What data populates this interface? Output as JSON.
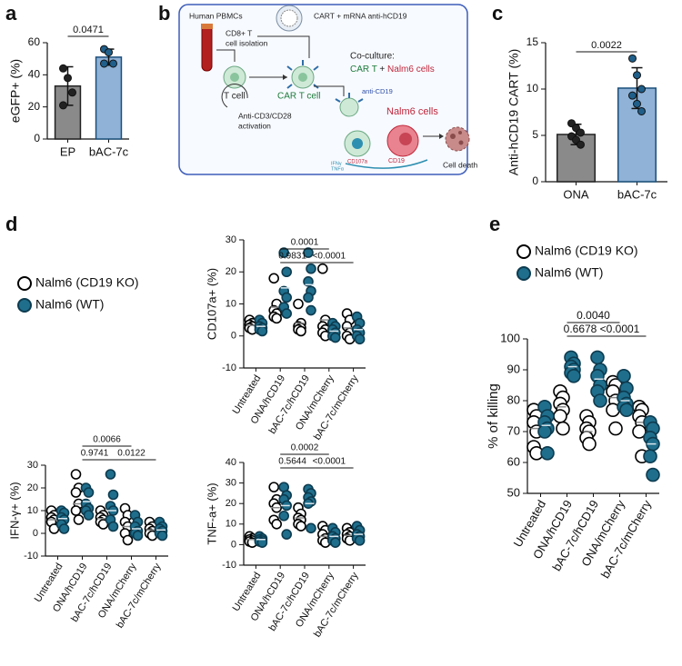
{
  "panel_labels": [
    "a",
    "b",
    "c",
    "d",
    "e"
  ],
  "diagram": {
    "pbmc": "Human PBMCs",
    "cart_mrna": "CART + mRNA anti-hCD19",
    "isolation": [
      "CD8+ T",
      "cell isolation"
    ],
    "t_cell": "T cell",
    "car_t_cell": "CAR T cell",
    "coculture": "Co-culture:",
    "coculture_cart": "CAR T",
    "coculture_plus": " + ",
    "coculture_nalm6": "Nalm6 cells",
    "anti_cd19": "anti-CD19",
    "nalm6": "Nalm6 cells",
    "activation": [
      "Anti-CD3/CD28",
      "activation"
    ],
    "cd107a": "CD107a",
    "cd19": "CD19",
    "cytokines": [
      "IFNγ",
      "TNFα"
    ],
    "cell_death": "Cell death"
  },
  "chart_data": [
    {
      "type": "bar",
      "ylabel": "eGFP+ (%)",
      "categories": [
        "EP",
        "bAC-7c"
      ],
      "values": [
        33,
        51
      ],
      "errors": [
        12,
        5
      ],
      "points": [
        [
          44,
          38,
          29,
          21
        ],
        [
          56,
          54,
          47,
          47
        ]
      ],
      "colors": [
        "#8a8a8a",
        "#8fb2d6"
      ],
      "edgecolors": [
        "#222222",
        "#1b4f7a"
      ],
      "ylim": [
        0,
        60
      ],
      "yticks": [
        0,
        20,
        40,
        60
      ],
      "comparisons": [
        {
          "groups": [
            0,
            1
          ],
          "label": "0.0471"
        }
      ]
    },
    {
      "type": "bar",
      "ylabel": "Anti-hCD19 CART (%)",
      "categories": [
        "ONA",
        "bAC-7c"
      ],
      "values": [
        5.1,
        10.1
      ],
      "errors": [
        1.1,
        2.2
      ],
      "points": [
        [
          6.3,
          5.8,
          5.3,
          4.9,
          4.5,
          4.0
        ],
        [
          13.3,
          11.5,
          10.0,
          9.3,
          8.4,
          7.6
        ]
      ],
      "colors": [
        "#8a8a8a",
        "#8fb2d6"
      ],
      "edgecolors": [
        "#222222",
        "#1b4f7a"
      ],
      "ylim": [
        0,
        15
      ],
      "yticks": [
        0,
        5,
        10,
        15
      ],
      "comparisons": [
        {
          "groups": [
            0,
            1
          ],
          "label": "0.0022"
        }
      ]
    },
    {
      "type": "dot",
      "ylabel": "CD107a+ (%)",
      "legend": true,
      "categories": [
        "Untreated",
        "ONA/hCD19",
        "bAC-7c/hCD19",
        "ONA/mCherry",
        "bAC-7c/mCherry"
      ],
      "series": [
        {
          "name": "Nalm6 (CD19 KO)",
          "color": "#ffffff",
          "edgecolor": "#000000",
          "values": [
            [
              5,
              4,
              3.5,
              3,
              2.5,
              2
            ],
            [
              18,
              10,
              8,
              7,
              6,
              5.5
            ],
            [
              10,
              4,
              3,
              2.5,
              2,
              1.5
            ],
            [
              21,
              5,
              3,
              2,
              1,
              0
            ],
            [
              7,
              5,
              3,
              1,
              0,
              -1
            ]
          ],
          "means": [
            3.3,
            9,
            4,
            5,
            2.5
          ]
        },
        {
          "name": "Nalm6 (WT)",
          "color": "#1f6e8c",
          "edgecolor": "#0d3b4f",
          "values": [
            [
              5,
              4,
              3,
              2.5,
              2,
              1.5
            ],
            [
              26,
              20,
              14,
              12,
              9,
              7
            ],
            [
              26,
              21,
              17,
              14,
              12,
              8
            ],
            [
              4,
              3,
              2,
              1,
              0,
              -0.5
            ],
            [
              6,
              4,
              2,
              1,
              0,
              -1
            ]
          ],
          "means": [
            3,
            15,
            16,
            1.5,
            2
          ]
        }
      ],
      "ylim": [
        -10,
        30
      ],
      "yticks": [
        -10,
        0,
        10,
        20,
        30
      ],
      "comparisons": [
        {
          "groups": [
            1,
            3
          ],
          "label": "0.0001"
        },
        {
          "groups": [
            1,
            2
          ],
          "label": "0.9831"
        },
        {
          "groups": [
            2,
            4
          ],
          "label": "<0.0001"
        }
      ]
    },
    {
      "type": "dot",
      "ylabel": "IFN-γ+ (%)",
      "categories": [
        "Untreated",
        "ONA/hCD19",
        "bAC-7c/hCD19",
        "ONA/mCherry",
        "bAC-7c/mCherry"
      ],
      "series": [
        {
          "color": "#ffffff",
          "edgecolor": "#000000",
          "values": [
            [
              10,
              8,
              7,
              6,
              5,
              2
            ],
            [
              26,
              20,
              18,
              13,
              10,
              6
            ],
            [
              10,
              8,
              7,
              6,
              5,
              4
            ],
            [
              11,
              8,
              5,
              3,
              0,
              -3
            ],
            [
              5,
              3,
              2,
              1,
              0,
              -1
            ]
          ],
          "means": [
            6,
            13,
            6.5,
            3,
            1.5
          ]
        },
        {
          "color": "#1f6e8c",
          "edgecolor": "#0d3b4f",
          "values": [
            [
              10,
              9,
              7,
              6,
              4,
              2
            ],
            [
              20,
              18,
              13,
              11,
              10,
              8
            ],
            [
              26,
              17,
              12,
              10,
              6,
              3
            ],
            [
              8,
              5,
              3,
              1,
              0,
              -1
            ],
            [
              5,
              3,
              2,
              1,
              0,
              -1
            ]
          ],
          "means": [
            6.5,
            14,
            10,
            2,
            1.5
          ]
        }
      ],
      "ylim": [
        -10,
        30
      ],
      "yticks": [
        -10,
        0,
        10,
        20,
        30
      ],
      "comparisons": [
        {
          "groups": [
            1,
            3
          ],
          "label": "0.0066"
        },
        {
          "groups": [
            1,
            2
          ],
          "label": "0.9741"
        },
        {
          "groups": [
            2,
            4
          ],
          "label": "0.0122"
        }
      ]
    },
    {
      "type": "dot",
      "ylabel": "TNF-a+ (%)",
      "categories": [
        "Untreated",
        "ONA/hCD19",
        "bAC-7c/hCD19",
        "ONA/mCherry",
        "bAC-7c/mCherry"
      ],
      "series": [
        {
          "color": "#ffffff",
          "edgecolor": "#000000",
          "values": [
            [
              4,
              3,
              2.5,
              2,
              1.5,
              1
            ],
            [
              28,
              22,
              20,
              18,
              12,
              10
            ],
            [
              18,
              15,
              13,
              12,
              10,
              9
            ],
            [
              9,
              7,
              5,
              3,
              2,
              1
            ],
            [
              8,
              6,
              5,
              4,
              3,
              2
            ]
          ],
          "means": [
            2.5,
            18,
            13,
            4,
            4.5
          ]
        },
        {
          "color": "#1f6e8c",
          "edgecolor": "#0d3b4f",
          "values": [
            [
              4,
              3,
              2.5,
              2,
              1.5,
              1
            ],
            [
              28,
              24,
              22,
              19,
              14,
              5
            ],
            [
              27,
              25,
              23,
              21,
              20,
              8
            ],
            [
              8,
              6,
              4,
              3,
              2,
              1
            ],
            [
              9,
              7,
              5,
              4,
              3,
              2
            ]
          ],
          "means": [
            2.5,
            19,
            20,
            4,
            5
          ]
        }
      ],
      "ylim": [
        -10,
        40
      ],
      "yticks": [
        -10,
        0,
        10,
        20,
        30,
        40
      ],
      "comparisons": [
        {
          "groups": [
            1,
            3
          ],
          "label": "0.0002"
        },
        {
          "groups": [
            1,
            2
          ],
          "label": "0.5644"
        },
        {
          "groups": [
            2,
            4
          ],
          "label": "<0.0001"
        }
      ]
    },
    {
      "type": "dot",
      "ylabel": "% of killing",
      "legend": true,
      "categories": [
        "Untreated",
        "ONA/hCD19",
        "bAC-7c/hCD19",
        "ONA/mCherry",
        "bAC-7c/mCherry"
      ],
      "series": [
        {
          "name": "Nalm6 (CD19 KO)",
          "color": "#ffffff",
          "edgecolor": "#000000",
          "values": [
            [
              77,
              75,
              73,
              70,
              65,
              63
            ],
            [
              83,
              81,
              79,
              77,
              75,
              71
            ],
            [
              75,
              73,
              71,
              70,
              68,
              66
            ],
            [
              86,
              85,
              83,
              80,
              77,
              71
            ],
            [
              78,
              77,
              75,
              73,
              70,
              62
            ]
          ],
          "means": [
            71,
            78,
            70,
            81,
            73
          ]
        },
        {
          "name": "Nalm6 (WT)",
          "color": "#1f6e8c",
          "edgecolor": "#0d3b4f",
          "values": [
            [
              78,
              75,
              73,
              71,
              70,
              63
            ],
            [
              94,
              92,
              91,
              90,
              89,
              88
            ],
            [
              94,
              90,
              88,
              85,
              83,
              80
            ],
            [
              88,
              84,
              81,
              79,
              78,
              77
            ],
            [
              73,
              71,
              68,
              66,
              62,
              56
            ]
          ],
          "means": [
            72,
            91,
            87,
            80,
            66
          ]
        }
      ],
      "ylim": [
        50,
        100
      ],
      "yticks": [
        50,
        60,
        70,
        80,
        90,
        100
      ],
      "comparisons": [
        {
          "groups": [
            1,
            3
          ],
          "label": "0.0040"
        },
        {
          "groups": [
            1,
            2
          ],
          "label": "0.6678"
        },
        {
          "groups": [
            2,
            4
          ],
          "label": "<0.0001"
        }
      ]
    }
  ]
}
